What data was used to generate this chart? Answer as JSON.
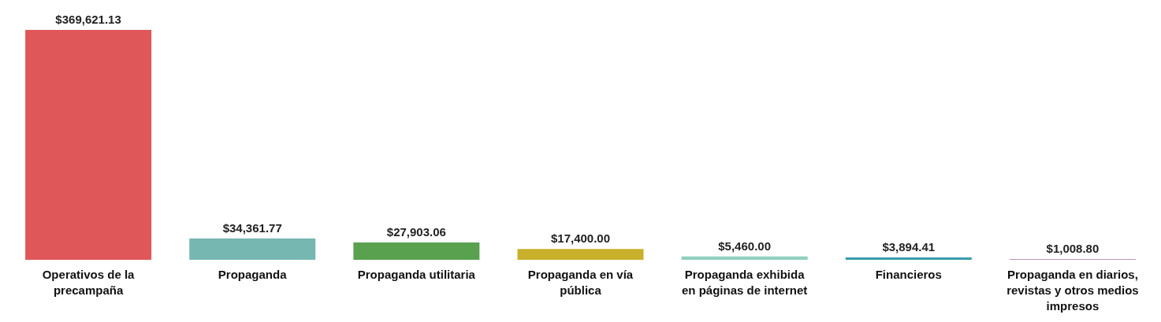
{
  "chart_data": {
    "type": "bar",
    "categories": [
      "Operativos de la precampaña",
      "Propaganda",
      "Propaganda utilitaria",
      "Propaganda en vía pública",
      "Propaganda exhibida en páginas de internet",
      "Financieros",
      "Propaganda en diarios, revistas y otros medios impresos"
    ],
    "values": [
      369621.13,
      34361.77,
      27903.06,
      17400.0,
      5460.0,
      3894.41,
      1008.8
    ],
    "colors": [
      "#e05759",
      "#76b7b2",
      "#59a14f",
      "#c8b02b",
      "#8fd0be",
      "#3b9cab",
      "#b07aa1"
    ],
    "value_labels": [
      "$369,621.13",
      "$34,361.77",
      "$27,903.06",
      "$17,400.00",
      "$5,460.00",
      "$3,894.41",
      "$1,008.80"
    ]
  }
}
